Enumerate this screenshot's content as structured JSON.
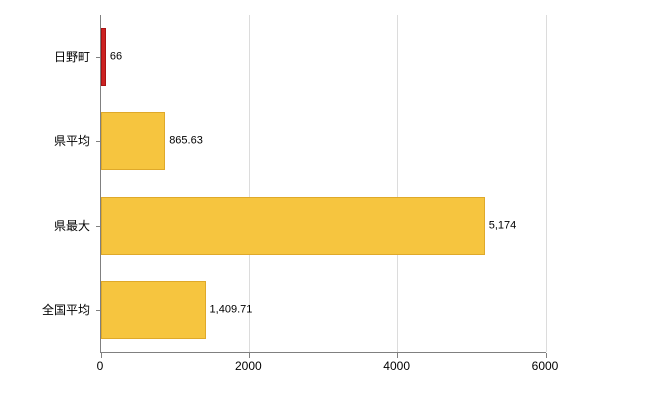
{
  "chart_data": {
    "type": "bar",
    "orientation": "horizontal",
    "title": "",
    "xlabel": "",
    "ylabel": "",
    "categories": [
      "日野町",
      "県平均",
      "県最大",
      "全国平均"
    ],
    "values": [
      66,
      865.63,
      5174,
      1409.71
    ],
    "value_labels": [
      "66",
      "865.63",
      "5,174",
      "1,409.71"
    ],
    "bar_colors": [
      "#cc2222",
      "#f6c53f",
      "#f6c53f",
      "#f6c53f"
    ],
    "bar_border_colors": [
      "#a81414",
      "#dfa92a",
      "#dfa92a",
      "#dfa92a"
    ],
    "xlim": [
      0,
      6000
    ],
    "x_ticks": [
      0,
      2000,
      4000,
      6000
    ],
    "x_tick_labels": [
      "0",
      "2000",
      "4000",
      "6000"
    ],
    "grid": true,
    "legend": false
  },
  "colors": {
    "axis": "#808080",
    "grid": "#dcdcdc",
    "text": "#000000",
    "background": "#ffffff"
  }
}
